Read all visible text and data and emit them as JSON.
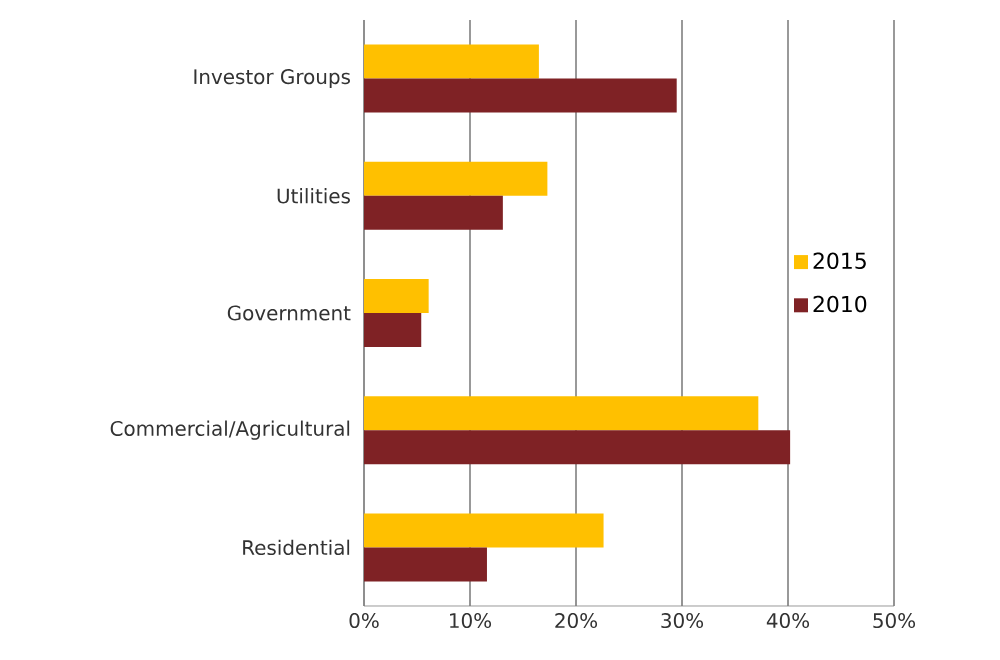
{
  "chart_data": {
    "type": "bar",
    "orientation": "horizontal",
    "categories": [
      "Investor Groups",
      "Utilities",
      "Government",
      "Commercial/Agricultural",
      "Residential"
    ],
    "series": [
      {
        "name": "2015",
        "color": "#ffc000",
        "values": [
          16.5,
          17.3,
          6.1,
          37.2,
          22.6
        ]
      },
      {
        "name": "2010",
        "color": "#7f2225",
        "values": [
          29.5,
          13.1,
          5.4,
          40.2,
          11.6
        ]
      }
    ],
    "xlim": [
      0,
      50
    ],
    "xticks": [
      {
        "value": 0,
        "label": "0%"
      },
      {
        "value": 10,
        "label": "10%"
      },
      {
        "value": 20,
        "label": "20%"
      },
      {
        "value": 30,
        "label": "30%"
      },
      {
        "value": 40,
        "label": "40%"
      },
      {
        "value": 50,
        "label": "50%"
      }
    ],
    "grid": "x",
    "legend": "right"
  }
}
